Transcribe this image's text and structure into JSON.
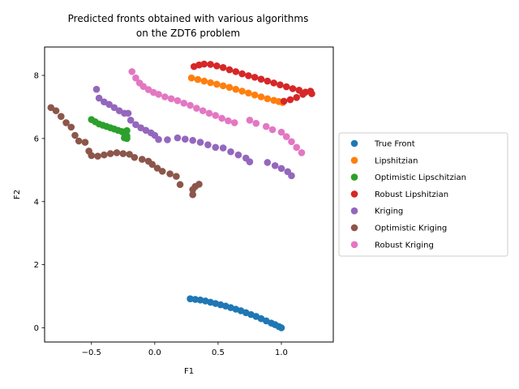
{
  "chart_data": {
    "type": "scatter",
    "title_lines": [
      "Predicted fronts obtained with various algorithms",
      "on the ZDT6 problem"
    ],
    "xlabel": "F1",
    "ylabel": "F2",
    "xlim": [
      -0.87,
      1.41
    ],
    "ylim": [
      -0.45,
      8.9
    ],
    "xticks": [
      -0.5,
      0.0,
      0.5,
      1.0
    ],
    "xtick_labels": [
      "−0.5",
      "0.0",
      "0.5",
      "1.0"
    ],
    "yticks": [
      0,
      2,
      4,
      6,
      8
    ],
    "ytick_labels": [
      "0",
      "2",
      "4",
      "6",
      "8"
    ],
    "grid": false,
    "legend_placement": "center-right, outside axes",
    "series": [
      {
        "name": "True Front",
        "color": "#1f77b4",
        "points": [
          [
            0.28,
            0.92
          ],
          [
            0.32,
            0.9
          ],
          [
            0.36,
            0.88
          ],
          [
            0.4,
            0.85
          ],
          [
            0.44,
            0.81
          ],
          [
            0.48,
            0.77
          ],
          [
            0.52,
            0.73
          ],
          [
            0.56,
            0.69
          ],
          [
            0.6,
            0.64
          ],
          [
            0.64,
            0.59
          ],
          [
            0.68,
            0.54
          ],
          [
            0.72,
            0.48
          ],
          [
            0.76,
            0.42
          ],
          [
            0.8,
            0.36
          ],
          [
            0.84,
            0.29
          ],
          [
            0.88,
            0.22
          ],
          [
            0.92,
            0.15
          ],
          [
            0.95,
            0.1
          ],
          [
            0.98,
            0.04
          ],
          [
            1.0,
            0.0
          ]
        ]
      },
      {
        "name": "Lipshitzian",
        "color": "#ff7f0e",
        "points": [
          [
            0.29,
            7.92
          ],
          [
            0.34,
            7.87
          ],
          [
            0.39,
            7.82
          ],
          [
            0.44,
            7.77
          ],
          [
            0.49,
            7.72
          ],
          [
            0.54,
            7.67
          ],
          [
            0.59,
            7.62
          ],
          [
            0.64,
            7.56
          ],
          [
            0.69,
            7.5
          ],
          [
            0.74,
            7.44
          ],
          [
            0.79,
            7.38
          ],
          [
            0.84,
            7.32
          ],
          [
            0.89,
            7.26
          ],
          [
            0.94,
            7.21
          ],
          [
            0.98,
            7.17
          ],
          [
            1.01,
            7.14
          ]
        ]
      },
      {
        "name": "Optimistic Lipschitzian",
        "color": "#2ca02c",
        "points": [
          [
            -0.5,
            6.6
          ],
          [
            -0.47,
            6.53
          ],
          [
            -0.44,
            6.46
          ],
          [
            -0.41,
            6.42
          ],
          [
            -0.38,
            6.38
          ],
          [
            -0.35,
            6.34
          ],
          [
            -0.32,
            6.3
          ],
          [
            -0.29,
            6.26
          ],
          [
            -0.26,
            6.22
          ],
          [
            -0.23,
            6.2
          ],
          [
            -0.22,
            6.25
          ],
          [
            -0.24,
            6.15
          ],
          [
            -0.22,
            6.08
          ],
          [
            -0.24,
            6.02
          ],
          [
            -0.22,
            6.0
          ]
        ]
      },
      {
        "name": "Robust Lipshitzian",
        "color": "#d62728",
        "points": [
          [
            0.31,
            8.28
          ],
          [
            0.35,
            8.33
          ],
          [
            0.39,
            8.36
          ],
          [
            0.44,
            8.35
          ],
          [
            0.49,
            8.3
          ],
          [
            0.54,
            8.25
          ],
          [
            0.59,
            8.18
          ],
          [
            0.64,
            8.12
          ],
          [
            0.69,
            8.05
          ],
          [
            0.74,
            7.99
          ],
          [
            0.79,
            7.94
          ],
          [
            0.84,
            7.88
          ],
          [
            0.89,
            7.82
          ],
          [
            0.94,
            7.76
          ],
          [
            0.99,
            7.7
          ],
          [
            1.04,
            7.64
          ],
          [
            1.09,
            7.58
          ],
          [
            1.14,
            7.53
          ],
          [
            1.19,
            7.47
          ],
          [
            1.24,
            7.42
          ],
          [
            1.23,
            7.5
          ],
          [
            1.17,
            7.4
          ],
          [
            1.12,
            7.3
          ],
          [
            1.07,
            7.23
          ],
          [
            1.02,
            7.18
          ]
        ]
      },
      {
        "name": "Kriging",
        "color": "#9467bd",
        "points": [
          [
            -0.46,
            7.56
          ],
          [
            -0.44,
            7.28
          ],
          [
            -0.4,
            7.16
          ],
          [
            -0.36,
            7.08
          ],
          [
            -0.32,
            6.98
          ],
          [
            -0.28,
            6.88
          ],
          [
            -0.24,
            6.8
          ],
          [
            -0.21,
            6.8
          ],
          [
            -0.19,
            6.58
          ],
          [
            -0.15,
            6.44
          ],
          [
            -0.11,
            6.34
          ],
          [
            -0.07,
            6.26
          ],
          [
            -0.03,
            6.18
          ],
          [
            0.0,
            6.1
          ],
          [
            0.03,
            5.97
          ],
          [
            0.1,
            5.96
          ],
          [
            0.18,
            6.02
          ],
          [
            0.24,
            5.98
          ],
          [
            0.3,
            5.94
          ],
          [
            0.36,
            5.88
          ],
          [
            0.42,
            5.8
          ],
          [
            0.48,
            5.72
          ],
          [
            0.54,
            5.7
          ],
          [
            0.6,
            5.58
          ],
          [
            0.66,
            5.48
          ],
          [
            0.72,
            5.38
          ],
          [
            0.75,
            5.26
          ],
          [
            0.89,
            5.24
          ],
          [
            0.95,
            5.14
          ],
          [
            1.0,
            5.05
          ],
          [
            1.05,
            4.95
          ],
          [
            1.08,
            4.82
          ]
        ]
      },
      {
        "name": "Optimistic Kriging",
        "color": "#8c564b",
        "points": [
          [
            -0.82,
            6.98
          ],
          [
            -0.78,
            6.88
          ],
          [
            -0.74,
            6.7
          ],
          [
            -0.7,
            6.5
          ],
          [
            -0.66,
            6.36
          ],
          [
            -0.63,
            6.1
          ],
          [
            -0.6,
            5.92
          ],
          [
            -0.55,
            5.88
          ],
          [
            -0.52,
            5.6
          ],
          [
            -0.5,
            5.46
          ],
          [
            -0.45,
            5.44
          ],
          [
            -0.4,
            5.48
          ],
          [
            -0.35,
            5.52
          ],
          [
            -0.3,
            5.55
          ],
          [
            -0.25,
            5.52
          ],
          [
            -0.2,
            5.5
          ],
          [
            -0.16,
            5.4
          ],
          [
            -0.1,
            5.34
          ],
          [
            -0.05,
            5.28
          ],
          [
            -0.02,
            5.18
          ],
          [
            0.02,
            5.06
          ],
          [
            0.06,
            4.96
          ],
          [
            0.12,
            4.88
          ],
          [
            0.17,
            4.8
          ],
          [
            0.2,
            4.54
          ],
          [
            0.3,
            4.22
          ],
          [
            0.3,
            4.38
          ],
          [
            0.32,
            4.48
          ],
          [
            0.35,
            4.55
          ]
        ]
      },
      {
        "name": "Robust Kriging",
        "color": "#e377c2",
        "points": [
          [
            -0.18,
            8.12
          ],
          [
            -0.15,
            7.92
          ],
          [
            -0.12,
            7.76
          ],
          [
            -0.09,
            7.65
          ],
          [
            -0.05,
            7.55
          ],
          [
            -0.01,
            7.46
          ],
          [
            0.03,
            7.4
          ],
          [
            0.08,
            7.32
          ],
          [
            0.13,
            7.26
          ],
          [
            0.18,
            7.2
          ],
          [
            0.23,
            7.12
          ],
          [
            0.28,
            7.05
          ],
          [
            0.33,
            6.96
          ],
          [
            0.38,
            6.88
          ],
          [
            0.43,
            6.8
          ],
          [
            0.48,
            6.73
          ],
          [
            0.53,
            6.64
          ],
          [
            0.58,
            6.56
          ],
          [
            0.63,
            6.5
          ],
          [
            0.75,
            6.58
          ],
          [
            0.8,
            6.48
          ],
          [
            0.88,
            6.38
          ],
          [
            0.93,
            6.28
          ],
          [
            1.0,
            6.2
          ],
          [
            1.04,
            6.06
          ],
          [
            1.08,
            5.9
          ],
          [
            1.12,
            5.72
          ],
          [
            1.16,
            5.55
          ]
        ]
      }
    ]
  }
}
